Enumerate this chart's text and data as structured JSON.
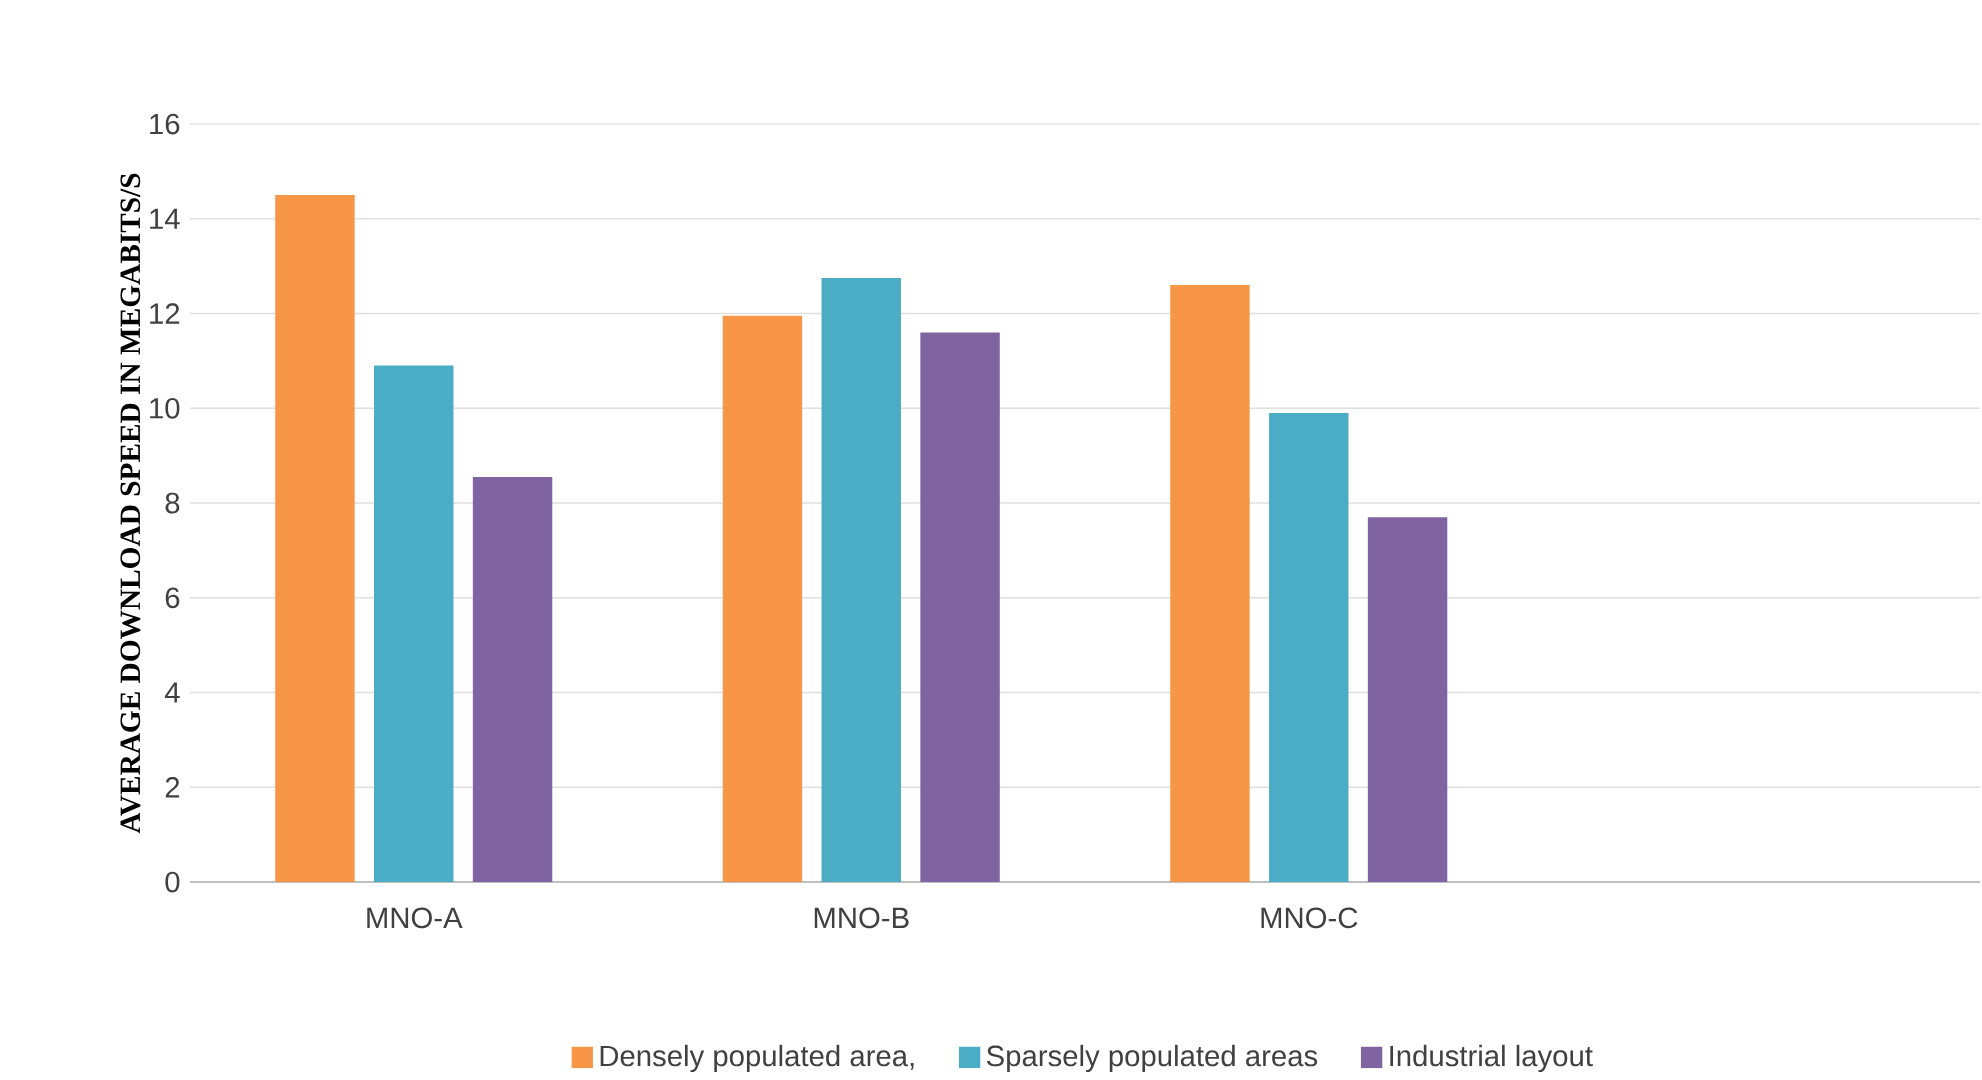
{
  "chart_data": {
    "type": "bar",
    "ylabel": "AVERAGE DOWNLOAD SPEED IN MEGABITS/S",
    "categories": [
      "MNO-A",
      "MNO-B",
      "MNO-C",
      null
    ],
    "series": [
      {
        "name": "Densely populated area,",
        "color": "#f79646",
        "values": [
          14.5,
          11.95,
          12.6,
          null
        ]
      },
      {
        "name": "Sparsely populated areas",
        "color": "#4bacc6",
        "values": [
          10.9,
          12.75,
          9.9,
          null
        ]
      },
      {
        "name": "Industrial layout",
        "color": "#8064a2",
        "values": [
          8.55,
          11.6,
          7.7,
          null
        ]
      }
    ],
    "ylim": [
      0,
      16
    ],
    "yticks": [
      0,
      2,
      4,
      6,
      8,
      10,
      12,
      14,
      16
    ],
    "grid": "y",
    "legend": "bottom"
  }
}
